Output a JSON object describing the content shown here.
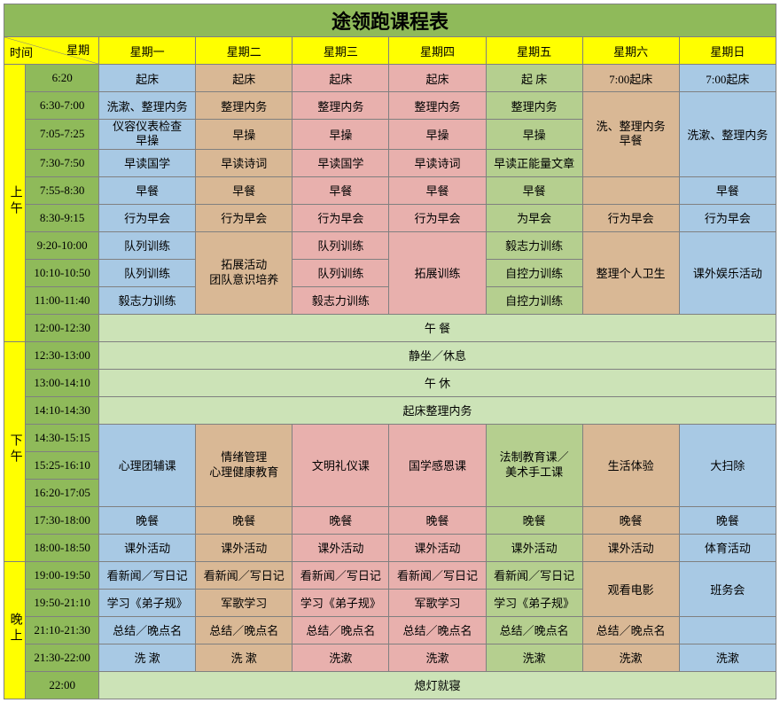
{
  "colors": {
    "title_bg": "#8fba5a",
    "yellow": "#ffff00",
    "green": "#8fba5a",
    "slot_bg": "#8fba5a",
    "blue": "#a8c9e4",
    "pink": "#e8b0ad",
    "tan": "#d9b895",
    "olive": "#b5cf8f",
    "mint": "#cce3b7",
    "border": "#808080"
  },
  "title": "途领跑课程表",
  "hdr": {
    "time": "时间",
    "weekday": "星期",
    "d1": "星期一",
    "d2": "星期二",
    "d3": "星期三",
    "d4": "星期四",
    "d5": "星期五",
    "d6": "星期六",
    "d7": "星期日"
  },
  "periods": {
    "morning": "上午",
    "afternoon": "下午",
    "evening": "晚上"
  },
  "slots": {
    "s1": "6:20",
    "s2": "6:30-7:00",
    "s3": "7:05-7:25",
    "s4": "7:30-7:50",
    "s5": "7:55-8:30",
    "s6": "8:30-9:15",
    "s7": "9:20-10:00",
    "s8": "10:10-10:50",
    "s9": "11:00-11:40",
    "s10": "12:00-12:30",
    "s11": "12:30-13:00",
    "s12": "13:00-14:10",
    "s13": "14:10-14:30",
    "s14": "14:30-15:15",
    "s15": "15:25-16:10",
    "s16": "16:20-17:05",
    "s17": "17:30-18:00",
    "s18": "18:00-18:50",
    "s19": "19:00-19:50",
    "s20": "19:50-21:10",
    "s21": "21:10-21:30",
    "s22": "21:30-22:00",
    "s23": "22:00"
  },
  "c": {
    "wake": "起床",
    "wake_sp": "起 床",
    "wake7": "7:00起床",
    "wash_tidy": "洗漱、整理内务",
    "tidy": "整理内务",
    "appearance": "仪容仪表检查\n早操",
    "morning_ex": "早操",
    "read_guoxue": "早读国学",
    "read_poem": "早读诗词",
    "read_energy": "早读正能量文章",
    "wash_tidy_bf": "洗、整理内务\n早餐",
    "breakfast": "早餐",
    "morning_mtg": "行为早会",
    "morning_mtg_s": "为早会",
    "drill": "队列训练",
    "expand_team": "拓展活动\n团队意识培养",
    "expand": "拓展训练",
    "will": "毅志力训练",
    "selfctrl": "自控力训练",
    "hygiene": "整理个人卫生",
    "extracurr": "课外娱乐活动",
    "lunch": "午 餐",
    "sit_rest": "静坐／休息",
    "nap": "午 休",
    "getup_tidy": "起床整理内务",
    "psych_group": "心理团辅课",
    "emotion": "情绪管理\n心理健康教育",
    "etiquette": "文明礼仪课",
    "guoxue_gan": "国学感恩课",
    "law_art": "法制教育课／\n美术手工课",
    "life_exp": "生活体验",
    "cleanup": "大扫除",
    "dinner": "晚餐",
    "extra_act": "课外活动",
    "sport": "体育活动",
    "news_diary": "看新闻／写日记",
    "dizi": "学习《弟子规》",
    "mil_song": "军歌学习",
    "movie": "观看电影",
    "class_mtg": "班务会",
    "summary": "总结／晚点名",
    "wash": "洗 漱",
    "wash2": "洗漱",
    "lights_out": "熄灯就寝"
  }
}
